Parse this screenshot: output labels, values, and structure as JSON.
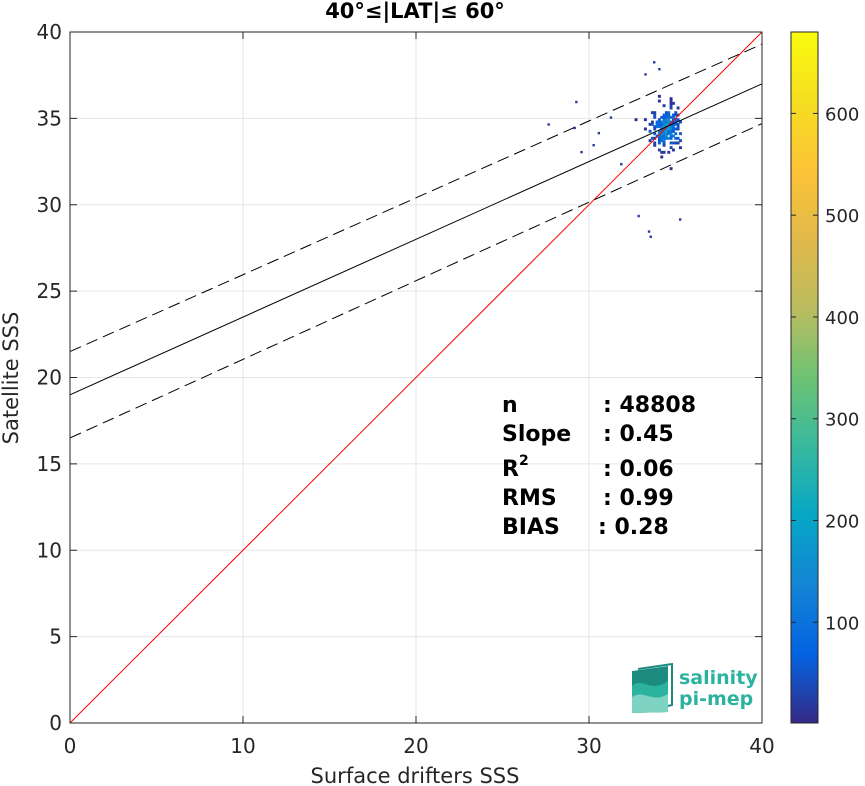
{
  "chart_data": {
    "type": "heatmap",
    "title": "40°≤|LAT|≤ 60°",
    "xlabel": "Surface drifters SSS",
    "ylabel": "Satellite SSS",
    "xlim": [
      0,
      40
    ],
    "ylim": [
      0,
      40
    ],
    "xticks": [
      0,
      10,
      20,
      30,
      40
    ],
    "yticks": [
      0,
      5,
      10,
      15,
      20,
      25,
      30,
      35,
      40
    ],
    "grid": true,
    "colorbar": {
      "colormap": "parula",
      "range": [
        1,
        680
      ],
      "ticks": [
        100,
        200,
        300,
        400,
        500,
        600
      ]
    },
    "lines": [
      {
        "name": "identity",
        "color": "#ff0000",
        "style": "solid",
        "x": [
          0,
          40
        ],
        "y": [
          0,
          40
        ]
      },
      {
        "name": "regression",
        "color": "#000000",
        "style": "solid",
        "x": [
          0,
          40
        ],
        "y": [
          19.0,
          37.0
        ]
      },
      {
        "name": "regression+2sd",
        "color": "#000000",
        "style": "dashed",
        "x": [
          0,
          40
        ],
        "y": [
          21.5,
          39.3
        ]
      },
      {
        "name": "regression-2sd",
        "color": "#000000",
        "style": "dashed",
        "x": [
          0,
          40
        ],
        "y": [
          16.5,
          34.7
        ]
      }
    ],
    "density": {
      "x_range": [
        32.5,
        35.3
      ],
      "y_range": [
        31.5,
        36.6
      ],
      "core": {
        "x": 34.4,
        "y": 34.4
      },
      "peak_count": 680,
      "outliers": [
        {
          "x": 27.6,
          "y": 34.6
        },
        {
          "x": 29.1,
          "y": 34.4
        },
        {
          "x": 29.2,
          "y": 35.9
        },
        {
          "x": 29.5,
          "y": 33.0
        },
        {
          "x": 30.2,
          "y": 33.4
        },
        {
          "x": 30.5,
          "y": 34.1
        },
        {
          "x": 32.8,
          "y": 29.3
        },
        {
          "x": 33.4,
          "y": 28.4
        },
        {
          "x": 33.5,
          "y": 28.1
        },
        {
          "x": 33.2,
          "y": 37.5
        },
        {
          "x": 33.7,
          "y": 38.2
        },
        {
          "x": 34.0,
          "y": 37.8
        },
        {
          "x": 35.2,
          "y": 29.1
        },
        {
          "x": 31.8,
          "y": 32.3
        },
        {
          "x": 31.2,
          "y": 35.0
        }
      ]
    },
    "stats": {
      "n": "48808",
      "slope": "0.45",
      "r2": "0.06",
      "rms": "0.99",
      "bias": "0.28"
    }
  },
  "labels": {
    "n": "n",
    "slope": "Slope",
    "r": "R",
    "r_sup": "2",
    "rms": "RMS",
    "bias": "BIAS"
  },
  "values": {
    "n": ": 48808",
    "slope": ": 0.45",
    "r2": ": 0.06",
    "rms": ": 0.99",
    "bias": ": 0.28"
  },
  "logo": {
    "line1": "salinity",
    "line2": "pi-mep"
  }
}
